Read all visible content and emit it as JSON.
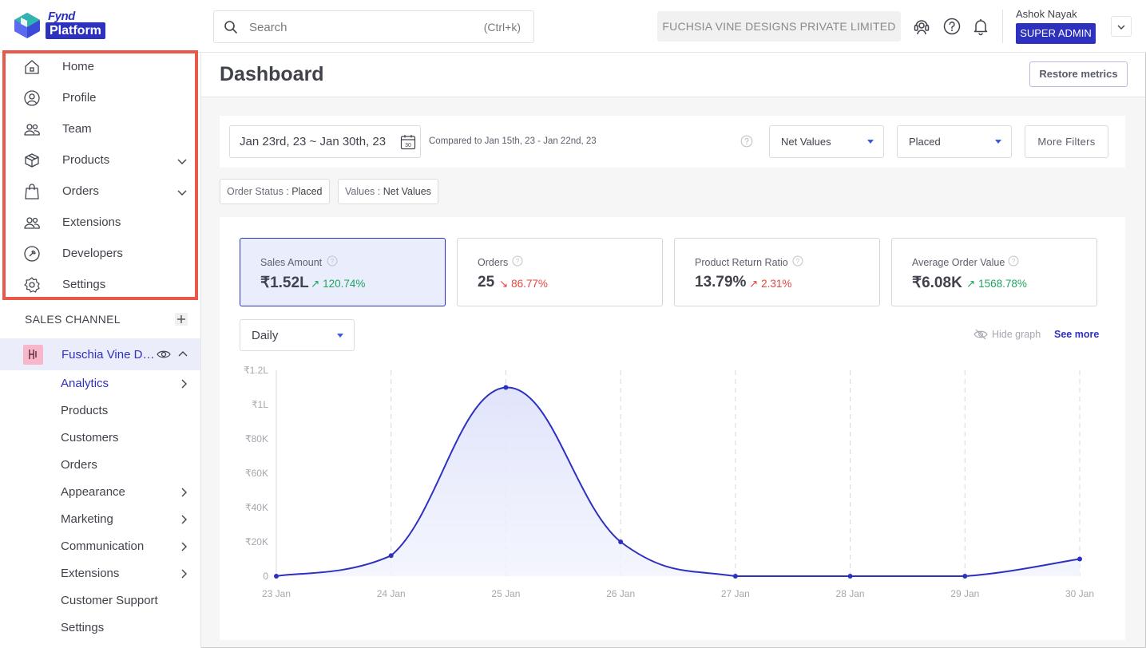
{
  "header": {
    "logo_top": "Fynd",
    "logo_bottom": "Platform",
    "search_placeholder": "Search",
    "search_shortcut": "(Ctrl+k)",
    "company": "FUCHSIA VINE DESIGNS PRIVATE LIMITED",
    "user_name": "Ashok Nayak",
    "user_role": "SUPER ADMIN"
  },
  "sidebar": {
    "items": [
      {
        "label": "Home",
        "icon": "home-icon"
      },
      {
        "label": "Profile",
        "icon": "profile-icon"
      },
      {
        "label": "Team",
        "icon": "team-icon"
      },
      {
        "label": "Products",
        "icon": "box-icon",
        "expandable": true
      },
      {
        "label": "Orders",
        "icon": "bag-icon",
        "expandable": true
      },
      {
        "label": "Extensions",
        "icon": "extensions-icon"
      },
      {
        "label": "Developers",
        "icon": "developers-icon"
      },
      {
        "label": "Settings",
        "icon": "settings-icon"
      }
    ],
    "sales_channel_header": "SALES CHANNEL",
    "channel_name": "Fuschia Vine Designs",
    "sub_items": [
      {
        "label": "Analytics",
        "active": true,
        "expandable": true
      },
      {
        "label": "Products"
      },
      {
        "label": "Customers"
      },
      {
        "label": "Orders"
      },
      {
        "label": "Appearance",
        "expandable": true
      },
      {
        "label": "Marketing",
        "expandable": true
      },
      {
        "label": "Communication",
        "expandable": true
      },
      {
        "label": "Extensions",
        "expandable": true
      },
      {
        "label": "Customer Support"
      },
      {
        "label": "Settings"
      }
    ]
  },
  "main": {
    "title": "Dashboard",
    "restore_label": "Restore metrics",
    "date_range": "Jan 23rd, 23 ~ Jan 30th, 23",
    "calendar_day": "30",
    "compare_text": "Compared to Jan 15th, 23 - Jan 22nd, 23",
    "value_select": "Net Values",
    "status_select": "Placed",
    "more_filters": "More Filters",
    "chips": [
      {
        "key": "Order Status : ",
        "value": "Placed"
      },
      {
        "key": "Values : ",
        "value": "Net Values"
      }
    ],
    "metrics": [
      {
        "label": "Sales Amount",
        "value": "₹1.52L",
        "delta": "120.74%",
        "direction": "up",
        "active": true
      },
      {
        "label": "Orders",
        "value": "25",
        "delta": "86.77%",
        "direction": "down"
      },
      {
        "label": "Product Return Ratio",
        "value": "13.79%",
        "delta": "2.31%",
        "direction": "up-red"
      },
      {
        "label": "Average Order Value",
        "value": "₹6.08K",
        "delta": "1568.78%",
        "direction": "up"
      }
    ],
    "period": "Daily",
    "hide_graph": "Hide graph",
    "see_more": "See more"
  },
  "colors": {
    "brand": "#2e31be",
    "up": "#21a360",
    "down": "#e2463f",
    "highlight": "#e8584b",
    "line": "#2e31be"
  },
  "chart_data": {
    "type": "area",
    "categories": [
      "23 Jan",
      "24 Jan",
      "25 Jan",
      "26 Jan",
      "27 Jan",
      "28 Jan",
      "29 Jan",
      "30 Jan"
    ],
    "series": [
      {
        "values": [
          0,
          12000,
          110000,
          20000,
          0,
          0,
          0,
          10000
        ]
      }
    ],
    "y_ticks": [
      "0",
      "₹20K",
      "₹40K",
      "₹60K",
      "₹80K",
      "₹1L",
      "₹1.2L"
    ],
    "ylim": [
      0,
      120000
    ],
    "grid": "vertical dashed"
  }
}
